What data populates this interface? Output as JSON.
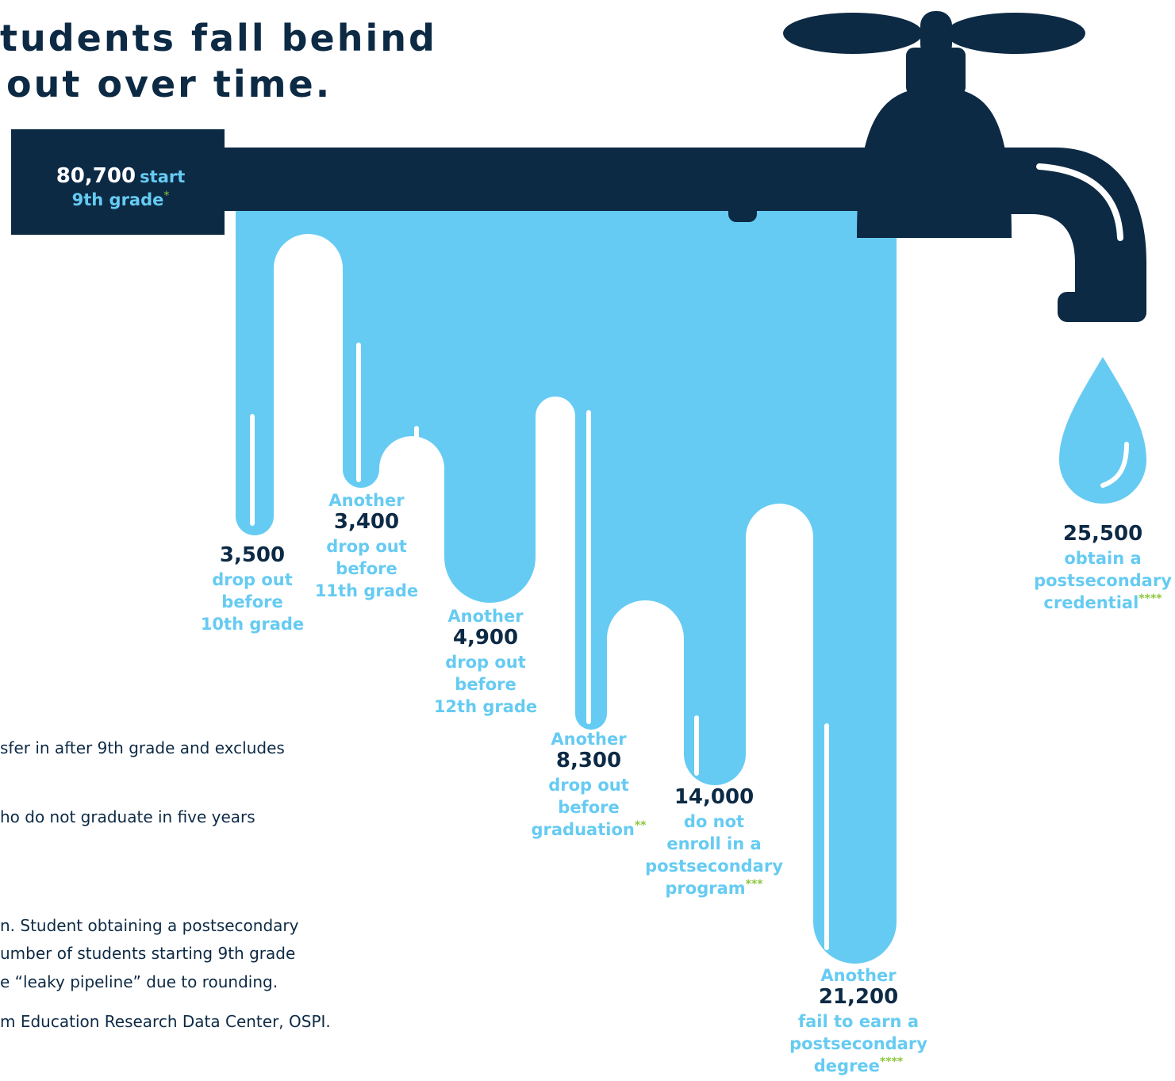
{
  "header": {
    "title_lines": [
      "tudents fall behind",
      "out over time."
    ]
  },
  "pipe": {
    "count": "80,700",
    "label": "start",
    "label2": "9th grade",
    "mark": "*"
  },
  "leaks": [
    {
      "count": "3,500",
      "lines": [
        "drop out",
        "before",
        "10th grade"
      ]
    },
    {
      "prefix": "Another",
      "count": "3,400",
      "lines": [
        "drop out",
        "before",
        "11th grade"
      ]
    },
    {
      "prefix": "Another",
      "count": "4,900",
      "lines": [
        "drop out",
        "before",
        "12th grade"
      ]
    },
    {
      "prefix": "Another",
      "count": "8,300",
      "lines": [
        "drop out",
        "before",
        "graduation"
      ],
      "mark": "**"
    },
    {
      "count": "14,000",
      "lines": [
        "do not",
        "enroll in a",
        "postsecondary",
        "program"
      ],
      "mark": "***"
    },
    {
      "prefix": "Another",
      "count": "21,200",
      "lines": [
        "fail to earn a",
        "postsecondary",
        "degree"
      ],
      "mark": "****"
    }
  ],
  "outcome": {
    "count": "25,500",
    "lines": [
      "obtain a",
      "postsecondary",
      "credential"
    ],
    "mark": "****"
  },
  "footnotes": [
    "sfer in after 9th grade and excludes",
    "ho do not graduate in five years",
    "n. Student obtaining a postsecondary",
    "umber of students starting 9th grade",
    "e “leaky pipeline” due to rounding.",
    "m Education Research Data Center, OSPI."
  ]
}
